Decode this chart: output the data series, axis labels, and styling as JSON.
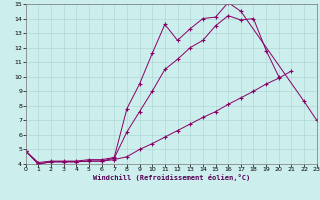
{
  "xlabel": "Windchill (Refroidissement éolien,°C)",
  "bg_color": "#cceeed",
  "grid_color": "#aad4d2",
  "line_color": "#880066",
  "xlim": [
    0,
    23
  ],
  "ylim": [
    4,
    15
  ],
  "xticks": [
    0,
    1,
    2,
    3,
    4,
    5,
    6,
    7,
    8,
    9,
    10,
    11,
    12,
    13,
    14,
    15,
    16,
    17,
    18,
    19,
    20,
    21,
    22,
    23
  ],
  "yticks": [
    4,
    5,
    6,
    7,
    8,
    9,
    10,
    11,
    12,
    13,
    14,
    15
  ],
  "s1_x": [
    0,
    1,
    2,
    3,
    4,
    5,
    6,
    7,
    8,
    9,
    10,
    11,
    12,
    13,
    14,
    15,
    16,
    17,
    18,
    19,
    20,
    21,
    22,
    23
  ],
  "s1_y": [
    4.9,
    4.1,
    4.2,
    4.2,
    4.2,
    4.3,
    4.3,
    4.45,
    7.8,
    9.5,
    11.6,
    13.6,
    12.5,
    13.3,
    14.0,
    14.1,
    15.1,
    14.5,
    null,
    null,
    null,
    null,
    8.3,
    7.0
  ],
  "s2_x": [
    0,
    1,
    2,
    3,
    4,
    5,
    6,
    7,
    8,
    9,
    10,
    11,
    12,
    13,
    14,
    15,
    16,
    17,
    18,
    19,
    20,
    21,
    22,
    23
  ],
  "s2_y": [
    4.9,
    4.0,
    4.15,
    4.15,
    4.15,
    4.2,
    4.2,
    4.4,
    6.2,
    7.6,
    9.0,
    10.5,
    11.2,
    12.0,
    12.5,
    13.5,
    14.2,
    13.9,
    14.0,
    11.8,
    10.0,
    null,
    null,
    null
  ],
  "s3_x": [
    0,
    1,
    2,
    3,
    4,
    5,
    6,
    7,
    8,
    9,
    10,
    11,
    12,
    13,
    14,
    15,
    16,
    17,
    18,
    19,
    20,
    21,
    22,
    23
  ],
  "s3_y": [
    4.9,
    4.0,
    4.15,
    4.15,
    4.15,
    4.2,
    4.2,
    4.3,
    4.5,
    5.0,
    5.4,
    5.85,
    6.3,
    6.75,
    7.2,
    7.6,
    8.1,
    8.55,
    9.0,
    9.5,
    9.9,
    10.4,
    null,
    null
  ]
}
